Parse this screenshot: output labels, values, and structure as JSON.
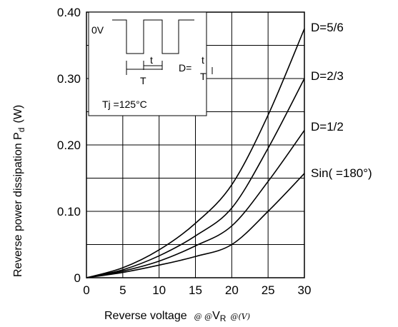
{
  "chart_data": {
    "type": "line",
    "ylabel_main": "Reverse power dissipation  P",
    "ylabel_sub": "d",
    "ylabel_unit": "(W)",
    "xlabel_main": "Reverse voltage",
    "xlabel_sym1": "@ @",
    "xlabel_var": "V",
    "xlabel_sub": "R",
    "xlabel_unit": "@(V)",
    "xlim": [
      0,
      30
    ],
    "ylim": [
      0,
      0.4
    ],
    "x_ticks": [
      {
        "value": 0,
        "label": "0"
      },
      {
        "value": 5,
        "label": "5"
      },
      {
        "value": 10,
        "label": "10"
      },
      {
        "value": 15,
        "label": "15"
      },
      {
        "value": 20,
        "label": "20"
      },
      {
        "value": 25,
        "label": "25"
      },
      {
        "value": 30,
        "label": "30"
      }
    ],
    "y_ticks": [
      {
        "value": 0,
        "label": "0"
      },
      {
        "value": 0.1,
        "label": "0.10"
      },
      {
        "value": 0.2,
        "label": "0.20"
      },
      {
        "value": 0.3,
        "label": "0.30"
      },
      {
        "value": 0.4,
        "label": "0.40"
      }
    ],
    "grid": true,
    "x_grid_step": 5,
    "y_grid_step": 0.05,
    "series": [
      {
        "name": "D=5/6",
        "x": [
          0,
          5,
          10,
          15,
          20,
          25,
          30
        ],
        "y": [
          0,
          0.015,
          0.042,
          0.082,
          0.14,
          0.245,
          0.375
        ]
      },
      {
        "name": "D=2/3",
        "x": [
          0,
          5,
          10,
          15,
          20,
          25,
          30
        ],
        "y": [
          0,
          0.012,
          0.033,
          0.063,
          0.105,
          0.195,
          0.3
        ]
      },
      {
        "name": "D=1/2",
        "x": [
          0,
          5,
          10,
          15,
          20,
          25,
          30
        ],
        "y": [
          0,
          0.01,
          0.025,
          0.048,
          0.078,
          0.145,
          0.222
        ]
      },
      {
        "name": "Sin(   =180°)",
        "x": [
          0,
          5,
          10,
          15,
          20,
          25,
          30
        ],
        "y": [
          0,
          0.008,
          0.019,
          0.032,
          0.05,
          0.1,
          0.157
        ]
      }
    ],
    "label_positions": [
      "right"
    ],
    "inset": {
      "level_label": "0V",
      "pulse_label": "t",
      "period_label": "T",
      "formula_prefix": "D=",
      "formula_num": "t",
      "formula_den": "T",
      "temperature": "Tj =125°C"
    }
  }
}
